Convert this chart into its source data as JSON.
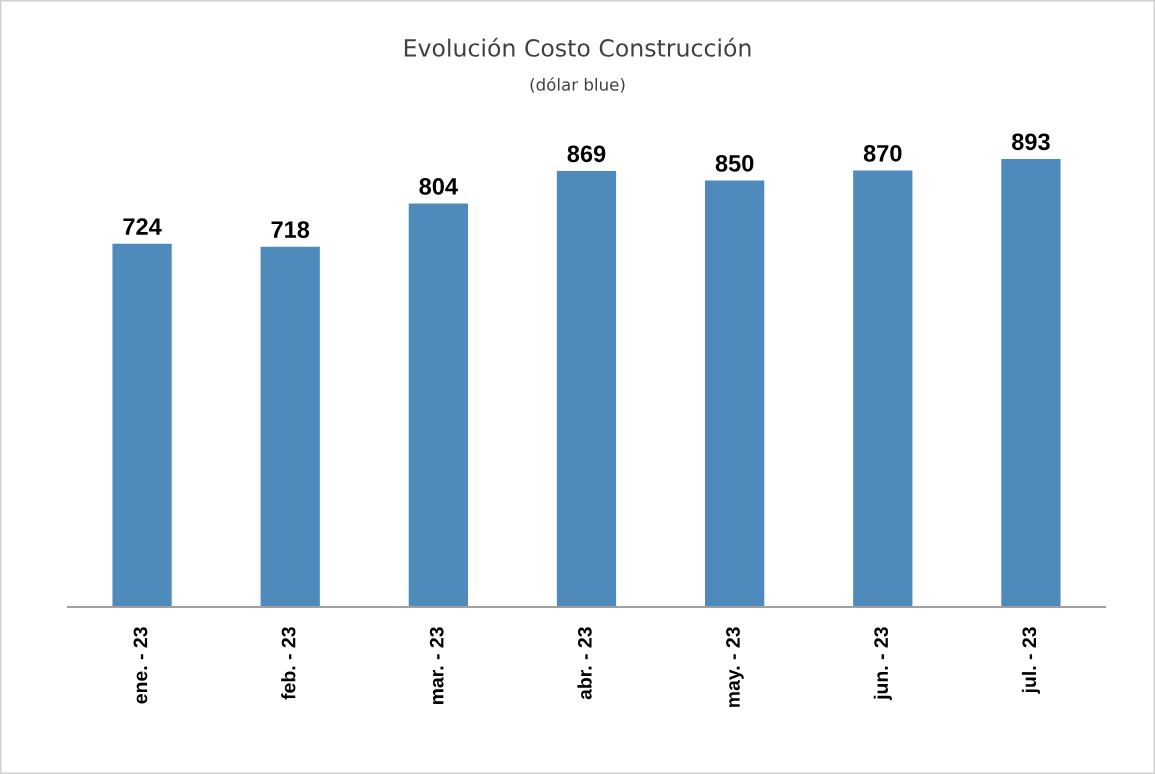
{
  "chart_data": {
    "type": "bar",
    "title": "Evolución Costo Construcción",
    "subtitle": "(dólar blue)",
    "categories": [
      "ene. - 23",
      "feb. - 23",
      "mar. - 23",
      "abr. - 23",
      "may. - 23",
      "jun. - 23",
      "jul. - 23"
    ],
    "values": [
      724,
      718,
      804,
      869,
      850,
      870,
      893
    ],
    "color": "#4e8abb",
    "data_labels": true
  }
}
